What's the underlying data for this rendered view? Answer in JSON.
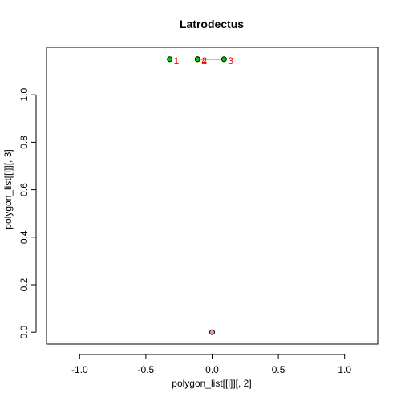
{
  "chart_data": {
    "type": "scatter",
    "title": "Latrodectus",
    "xlabel": "polygon_list[[i]][, 2]",
    "ylabel": "polygon_list[[i]][, 3]",
    "xlim": [
      -1.25,
      1.25
    ],
    "ylim": [
      -0.05,
      1.2
    ],
    "xticks": [
      -1.0,
      -0.5,
      0.0,
      0.5,
      1.0
    ],
    "xtick_labels": [
      "-1.0",
      "-0.5",
      "0.0",
      "0.5",
      "1.0"
    ],
    "yticks": [
      0.0,
      0.2,
      0.4,
      0.6,
      0.8,
      1.0
    ],
    "ytick_labels": [
      "0.0",
      "0.2",
      "0.4",
      "0.6",
      "0.8",
      "1.0"
    ],
    "grid": false,
    "segment": {
      "from": [
        -0.11,
        1.15
      ],
      "to": [
        0.09,
        1.15
      ],
      "color": "#000000"
    },
    "series": [
      {
        "color": "#00cc00",
        "points": [
          {
            "x": -0.32,
            "y": 1.15,
            "label": "1"
          },
          {
            "x": -0.11,
            "y": 1.15,
            "label": "2"
          },
          {
            "x": 0.09,
            "y": 1.15,
            "label": "3"
          },
          {
            "x": -0.11,
            "y": 1.15,
            "label": "4"
          }
        ]
      },
      {
        "color": "#ff88cc",
        "points": [
          {
            "x": 0.0,
            "y": 0.0,
            "label": ""
          }
        ]
      }
    ],
    "point_label_color": "#ff0000"
  }
}
